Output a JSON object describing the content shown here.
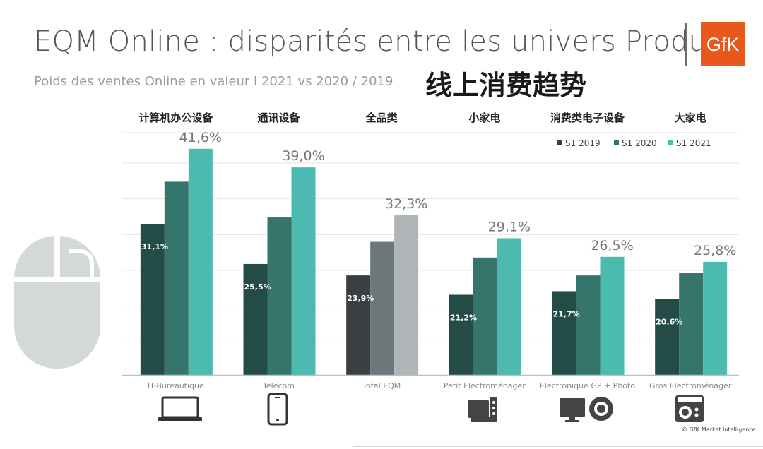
{
  "header": {
    "title": "EQM Online : disparités entre les univers Produits",
    "subtitle": "Poids des ventes Online en valeur I 2021 vs 2020 / 2019",
    "cn_title": "线上消费趋势",
    "logo_text": "GfK"
  },
  "icons": {
    "left_decoration": "computer-mouse-icon",
    "categories": [
      "laptop-icon",
      "smartphone-icon",
      "",
      "kitchen-appliance-icon",
      "tv-camera-icon",
      "washing-machine-icon"
    ]
  },
  "colors": {
    "s2019": "#244c46",
    "s2020": "#36756b",
    "s2021": "#4dbab0",
    "total_2019": "#3a3f42",
    "total_2020": "#6b777a",
    "total_2021": "#b0b5b7",
    "grid": "#e4e4e4",
    "axis": "#bfbfbf"
  },
  "chart_data": {
    "type": "bar",
    "categories": [
      "IT-Bureautique",
      "Telecom",
      "Total EQM",
      "Petit Electroménager",
      "Electronique GP + Photo",
      "Gros Electroménager"
    ],
    "categories_cn": [
      "计算机办公设备",
      "通讯设备",
      "全品类",
      "小家电",
      "消费类电子设备",
      "大家电"
    ],
    "series": [
      {
        "name": "S1 2019",
        "values": [
          31.1,
          25.5,
          23.9,
          21.2,
          21.7,
          20.6
        ],
        "labels": [
          "31,1%",
          "25,5%",
          "23,9%",
          "21,2%",
          "21,7%",
          "20,6%"
        ]
      },
      {
        "name": "S1 2020",
        "values": [
          37.0,
          32.0,
          28.6,
          26.4,
          23.9,
          24.3
        ],
        "labels": [
          "",
          "",
          "",
          "",
          "",
          ""
        ]
      },
      {
        "name": "S1 2021",
        "values": [
          41.6,
          39.0,
          32.3,
          29.1,
          26.5,
          25.8
        ],
        "labels": [
          "41,6%",
          "39,0%",
          "32,3%",
          "29,1%",
          "26,5%",
          "25,8%"
        ]
      }
    ],
    "ylim": [
      10,
      45
    ],
    "grid": true,
    "legend_position": "top-right",
    "xlabel": "",
    "ylabel": ""
  },
  "footer": {
    "copyright": "© GfK",
    "brand": "Market Intelligence"
  }
}
